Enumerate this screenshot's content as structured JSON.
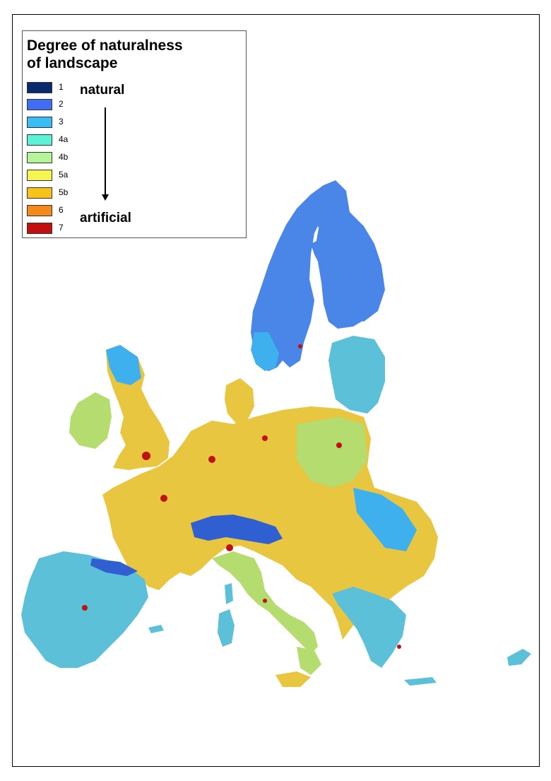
{
  "legend": {
    "title_line1": "Degree of naturalness",
    "title_line2": "of landscape",
    "natural_label": "natural",
    "artificial_label": "artificial",
    "classes": [
      {
        "label": "1",
        "color": "#0a2a6e"
      },
      {
        "label": "2",
        "color": "#3f6ef5"
      },
      {
        "label": "3",
        "color": "#3bbcf2"
      },
      {
        "label": "4a",
        "color": "#5cf2d8"
      },
      {
        "label": "4b",
        "color": "#b4f59a"
      },
      {
        "label": "5a",
        "color": "#f5f550"
      },
      {
        "label": "5b",
        "color": "#f7c21a"
      },
      {
        "label": "6",
        "color": "#f58a1a"
      },
      {
        "label": "7",
        "color": "#c01010"
      }
    ]
  },
  "map": {
    "colors": {
      "sea": "#ffffff",
      "north": "#4a86e8",
      "north_mixed": "#3fb0ee",
      "central": "#e8c640",
      "central_green": "#b4dc6e",
      "south": "#5cc0d8",
      "mountain": "#2f5fd0",
      "urban": "#c01010"
    }
  }
}
